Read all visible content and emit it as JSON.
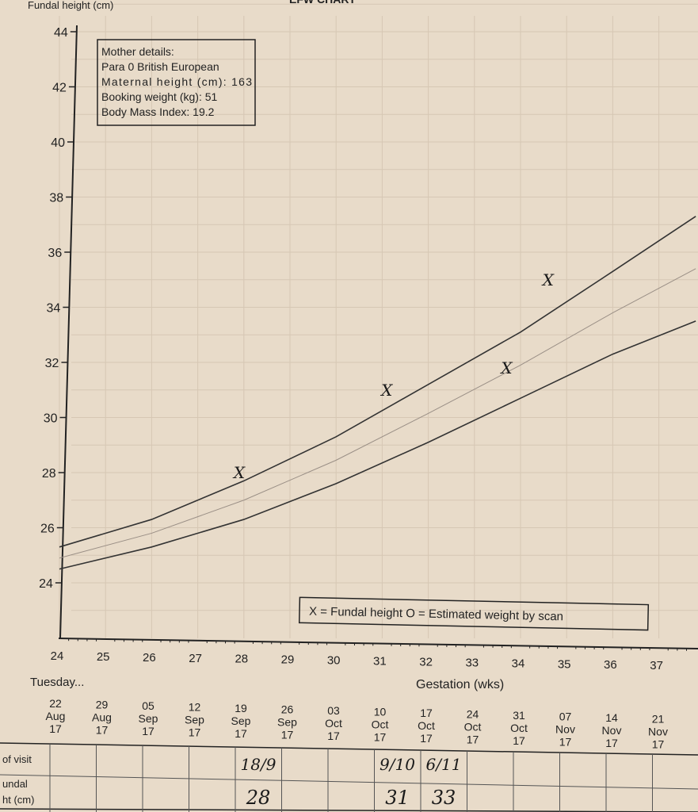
{
  "chart_data": {
    "type": "line",
    "ylabel": "Fundal height (cm)",
    "xlabel": "Gestation (wks)",
    "header_partial": "EFW CHART",
    "xlim": [
      24,
      37.8
    ],
    "ylim": [
      23,
      44.5
    ],
    "xticks": [
      24,
      25,
      26,
      27,
      28,
      29,
      30,
      31,
      32,
      33,
      34,
      35,
      36,
      37
    ],
    "yticks": [
      24,
      26,
      28,
      30,
      32,
      34,
      36,
      38,
      40,
      42,
      44
    ],
    "grid": true,
    "series": [
      {
        "x": [
          24,
          26,
          28,
          30,
          32,
          34,
          36,
          37.8
        ],
        "y": [
          25.3,
          26.3,
          27.7,
          29.3,
          31.2,
          33.1,
          35.3,
          37.3
        ],
        "color": "#333333"
      },
      {
        "x": [
          24,
          26,
          28,
          30,
          32,
          34,
          36,
          37.8
        ],
        "y": [
          24.9,
          25.8,
          27.0,
          28.45,
          30.15,
          31.9,
          33.8,
          35.4
        ],
        "color": "#9a8f86"
      },
      {
        "x": [
          24,
          26,
          28,
          30,
          32,
          34,
          36,
          37.8
        ],
        "y": [
          24.5,
          25.3,
          26.3,
          27.6,
          29.1,
          30.7,
          32.3,
          33.5
        ],
        "color": "#333333"
      }
    ],
    "points": {
      "marker": "X",
      "x": [
        27.9,
        31.1,
        33.7,
        34.6
      ],
      "y": [
        28.0,
        31.0,
        31.8,
        35.0
      ]
    },
    "mother_details": [
      "Mother details:",
      "Para 0  British European",
      "Maternal height (cm): 163",
      "Booking weight (kg): 51",
      "Body Mass Index: 19.2"
    ],
    "legend": "X = Fundal height    O = Estimated weight by scan"
  },
  "dates": {
    "label": "Tuesday...",
    "items": [
      [
        "22",
        "Aug",
        "17"
      ],
      [
        "29",
        "Aug",
        "17"
      ],
      [
        "05",
        "Sep",
        "17"
      ],
      [
        "12",
        "Sep",
        "17"
      ],
      [
        "19",
        "Sep",
        "17"
      ],
      [
        "26",
        "Sep",
        "17"
      ],
      [
        "03",
        "Oct",
        "17"
      ],
      [
        "10",
        "Oct",
        "17"
      ],
      [
        "17",
        "Oct",
        "17"
      ],
      [
        "24",
        "Oct",
        "17"
      ],
      [
        "31",
        "Oct",
        "17"
      ],
      [
        "07",
        "Nov",
        "17"
      ],
      [
        "14",
        "Nov",
        "17"
      ],
      [
        "21",
        "Nov",
        "17"
      ]
    ]
  },
  "table": {
    "rows": [
      {
        "label": [
          "of visit"
        ],
        "entries": [
          {
            "col": 4,
            "text": "18/9"
          },
          {
            "col": 7,
            "text": "9/10"
          },
          {
            "col": 8,
            "text": "6/11"
          }
        ]
      },
      {
        "label": [
          "undal",
          "ht (cm)"
        ],
        "entries": [
          {
            "col": 4,
            "text": "28"
          },
          {
            "col": 7,
            "text": "31"
          },
          {
            "col": 8,
            "text": "33"
          }
        ]
      }
    ]
  }
}
